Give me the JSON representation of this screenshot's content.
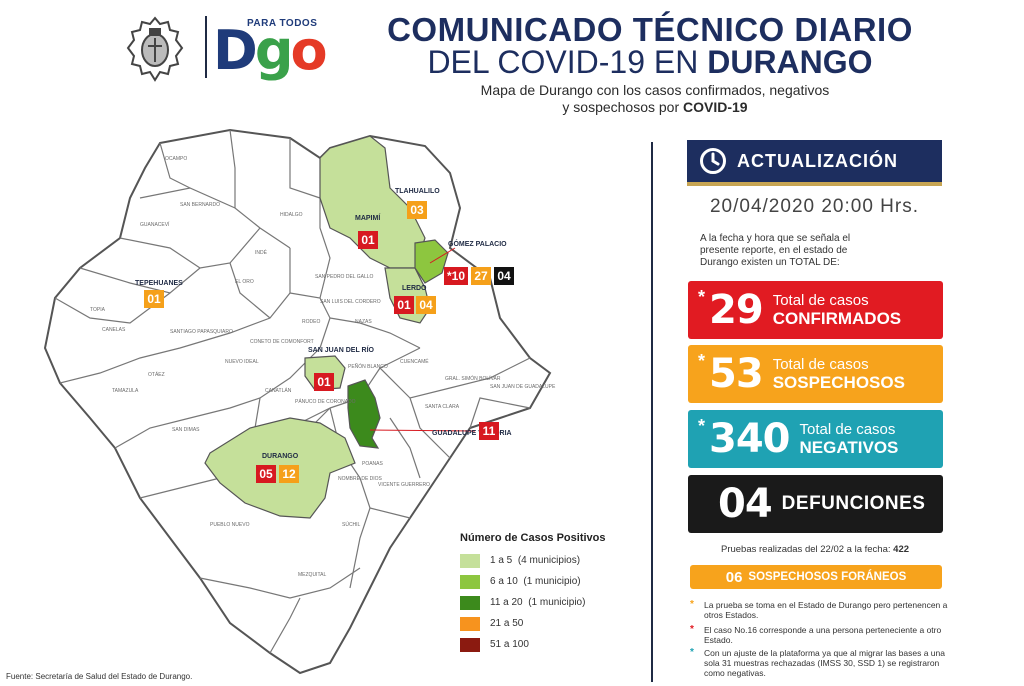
{
  "header": {
    "crest_icon": "durango-coat-of-arms-icon",
    "logo": {
      "small_text": "PARA TODOS",
      "letters": [
        "D",
        "g",
        "o"
      ]
    },
    "title_line1": "COMUNICADO TÉCNICO DIARIO",
    "title_line2_a": "DEL COVID-19 EN ",
    "title_line2_b": "DURANGO",
    "subtitle_line1": "Mapa de Durango con los casos confirmados, negativos",
    "subtitle_line2_a": "y sospechosos por ",
    "subtitle_line2_b": "COVID-19"
  },
  "map": {
    "municipalities": [
      {
        "name": "MAPIMÍ",
        "counts": [
          {
            "value": "01",
            "type": "confirmed"
          }
        ]
      },
      {
        "name": "TLAHUALILO",
        "counts": [
          {
            "value": "03",
            "type": "suspected"
          }
        ]
      },
      {
        "name": "GÓMEZ PALACIO",
        "counts": [
          {
            "value": "*10",
            "type": "confirmed"
          },
          {
            "value": "27",
            "type": "suspected"
          },
          {
            "value": "04",
            "type": "deaths"
          }
        ]
      },
      {
        "name": "LERDO",
        "counts": [
          {
            "value": "01",
            "type": "confirmed"
          },
          {
            "value": "04",
            "type": "suspected"
          }
        ]
      },
      {
        "name": "TEPEHUANES",
        "counts": [
          {
            "value": "01",
            "type": "suspected"
          }
        ]
      },
      {
        "name": "SAN JUAN DEL RÍO",
        "counts": [
          {
            "value": "01",
            "type": "confirmed"
          }
        ]
      },
      {
        "name": "GUADALUPE VICTORIA",
        "counts": [
          {
            "value": "11",
            "type": "confirmed"
          }
        ]
      },
      {
        "name": "DURANGO",
        "counts": [
          {
            "value": "05",
            "type": "confirmed"
          },
          {
            "value": "12",
            "type": "suspected"
          }
        ]
      }
    ],
    "minor_labels": [
      "OCAMPO",
      "SAN BERNARDO",
      "GUANACEVÍ",
      "HIDALGO",
      "INDÉ",
      "EL ORO",
      "SAN PEDRO DEL GALLO",
      "SAN LUIS DEL CORDERO",
      "RODEO",
      "NAZAS",
      "TOPIA",
      "CANELAS",
      "SANTIAGO PAPASQUIARO",
      "CONETO DE COMONFORT",
      "NUEVO IDEAL",
      "OTÁEZ",
      "TAMAZULA",
      "CANATLÁN",
      "PEÑÓN BLANCO",
      "CUENCAMÉ",
      "SANTA CLARA",
      "SAN JUAN DE GUADALUPE",
      "GRAL. SIMÓN BOLÍVAR",
      "PÁNUCO DE CORONADO",
      "SAN DIMAS",
      "POANAS",
      "NOMBRE DE DIOS",
      "VICENTE GUERRERO",
      "SÚCHIL",
      "PUEBLO NUEVO",
      "MEZQUITAL"
    ],
    "colors": {
      "range_1_5": "#c5e09a",
      "range_6_10": "#8dc63f",
      "range_11_20": "#3c8a1c",
      "range_21_50": "#f7931e",
      "range_51_100": "#8b1a10",
      "border": "#555555",
      "base": "#ffffff"
    }
  },
  "legend": {
    "title": "Número de Casos Positivos",
    "items": [
      {
        "label": "1 a 5",
        "note": "(4 municipios)",
        "color": "#c5e09a"
      },
      {
        "label": "6 a 10",
        "note": "(1 municipio)",
        "color": "#8dc63f"
      },
      {
        "label": "11 a 20",
        "note": "(1 municipio)",
        "color": "#3c8a1c"
      },
      {
        "label": "21 a 50",
        "note": "",
        "color": "#f7931e"
      },
      {
        "label": "51 a 100",
        "note": "",
        "color": "#8b1a10"
      }
    ]
  },
  "source": "Fuente: Secretaría de Salud del Estado de Durango.",
  "panel": {
    "update_icon": "clock-icon",
    "update_label": "ACTUALIZACIÓN",
    "datetime": "20/04/2020  20:00 Hrs.",
    "intro": "A la fecha y hora que se señala el presente reporte, en el estado de Durango existen un TOTAL DE:",
    "stats": [
      {
        "star": "*",
        "number": "29",
        "line1": "Total de casos",
        "line2": "CONFIRMADOS",
        "color": "#e11b22"
      },
      {
        "star": "*",
        "number": "53",
        "line1": "Total de casos",
        "line2": "SOSPECHOSOS",
        "color": "#f7a31c"
      },
      {
        "star": "*",
        "number": "340",
        "line1": "Total de casos",
        "line2": "NEGATIVOS",
        "color": "#1fa2b3"
      }
    ],
    "deaths": {
      "number": "04",
      "label": "DEFUNCIONES"
    },
    "tests_text": "Pruebas realizadas del 22/02 a la fecha: ",
    "tests_value": "422",
    "foraneos_number": "06",
    "foraneos_label": "SOSPECHOSOS FORÁNEOS",
    "notes": [
      {
        "star": "*",
        "color": "#f7a31c",
        "text": "La prueba se toma en el Estado de Durango pero pertenencen a otros Estados."
      },
      {
        "star": "*",
        "color": "#e11b22",
        "text": "El caso No.16 corresponde a una persona perteneciente a otro Estado."
      },
      {
        "star": "*",
        "color": "#1fa2b3",
        "text": "Con un ajuste de la plataforma ya que al migrar las bases a una sola 31 muestras rechazadas (IMSS 30, SSD 1) se registraron como negativas."
      }
    ]
  }
}
